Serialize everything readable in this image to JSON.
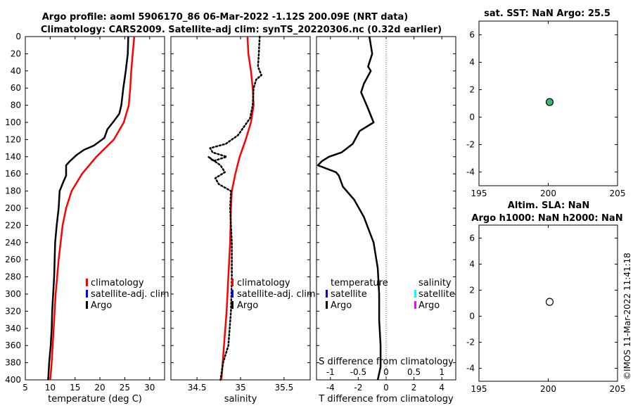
{
  "title": {
    "line1": "Argo profile: aoml 5906170_86 06-Mar-2022 -1.12S 200.09E (NRT data)",
    "line2": "Climatology: CARS2009. Satellite-adj clim: synTS_20220306.nc (0.32d earlier)"
  },
  "colors": {
    "climatology": "#ff0000",
    "satellite": "#0000ff",
    "argo": "#000000",
    "sal_satellite": "#00ffff",
    "sal_argo": "#ff00ff",
    "sst_marker": "#33bb77"
  },
  "legend": {
    "climatology": "climatology",
    "satellite_adj": "satellite-adj. clim",
    "argo": "Argo",
    "temperature": "temperature",
    "salinity": "salinity",
    "satellite": "satellite"
  },
  "stamp": "©IMOS 11-Mar-2022 11:41:18",
  "chart_data": [
    {
      "id": "temperature",
      "type": "line",
      "xlabel": "temperature (deg C)",
      "xlim": [
        5,
        33
      ],
      "xticks": [
        5,
        10,
        15,
        20,
        25,
        30
      ],
      "ylim": [
        0,
        400
      ],
      "yticks": [
        0,
        20,
        40,
        60,
        80,
        100,
        120,
        140,
        160,
        180,
        200,
        220,
        240,
        260,
        280,
        300,
        320,
        340,
        360,
        380,
        400
      ],
      "series": [
        {
          "name": "climatology",
          "style": "solid",
          "points": [
            [
              26.9,
              0
            ],
            [
              26.6,
              20
            ],
            [
              26.3,
              40
            ],
            [
              26.1,
              60
            ],
            [
              25.8,
              80
            ],
            [
              24.8,
              100
            ],
            [
              22.8,
              120
            ],
            [
              19.3,
              140
            ],
            [
              16.4,
              160
            ],
            [
              14.3,
              180
            ],
            [
              13.2,
              200
            ],
            [
              12.5,
              220
            ],
            [
              12.1,
              240
            ],
            [
              11.7,
              260
            ],
            [
              11.4,
              280
            ],
            [
              11.1,
              300
            ],
            [
              10.9,
              320
            ],
            [
              10.7,
              340
            ],
            [
              10.5,
              360
            ],
            [
              10.3,
              380
            ],
            [
              10.0,
              400
            ]
          ]
        },
        {
          "name": "Argo",
          "style": "solid",
          "points": [
            [
              25.7,
              0
            ],
            [
              25.6,
              20
            ],
            [
              25.2,
              40
            ],
            [
              24.7,
              60
            ],
            [
              24.3,
              80
            ],
            [
              23.9,
              90
            ],
            [
              22.6,
              100
            ],
            [
              21.5,
              108
            ],
            [
              20.9,
              118
            ],
            [
              18.8,
              127
            ],
            [
              16.8,
              132
            ],
            [
              15.3,
              138
            ],
            [
              14.0,
              145
            ],
            [
              13.2,
              150
            ],
            [
              13.2,
              162
            ],
            [
              12.6,
              170
            ],
            [
              11.9,
              180
            ],
            [
              11.7,
              200
            ],
            [
              11.3,
              220
            ],
            [
              11.0,
              240
            ],
            [
              10.9,
              260
            ],
            [
              10.8,
              280
            ],
            [
              10.6,
              300
            ],
            [
              10.4,
              320
            ],
            [
              10.3,
              340
            ],
            [
              10.1,
              360
            ],
            [
              9.8,
              380
            ],
            [
              9.6,
              400
            ]
          ]
        }
      ]
    },
    {
      "id": "salinity",
      "type": "line",
      "xlabel": "salinity",
      "xlim": [
        34.2,
        35.8
      ],
      "xticks": [
        34.5,
        35,
        35.5
      ],
      "ylim": [
        0,
        400
      ],
      "series": [
        {
          "name": "climatology",
          "style": "solid",
          "points": [
            [
              35.08,
              0
            ],
            [
              35.09,
              20
            ],
            [
              35.12,
              40
            ],
            [
              35.14,
              60
            ],
            [
              35.15,
              80
            ],
            [
              35.12,
              100
            ],
            [
              35.06,
              120
            ],
            [
              34.99,
              140
            ],
            [
              34.94,
              160
            ],
            [
              34.9,
              180
            ],
            [
              34.89,
              200
            ],
            [
              34.88,
              240
            ],
            [
              34.86,
              280
            ],
            [
              34.84,
              320
            ],
            [
              34.81,
              360
            ],
            [
              34.78,
              400
            ]
          ]
        },
        {
          "name": "Argo",
          "style": "dotted",
          "points": [
            [
              35.22,
              0
            ],
            [
              35.21,
              20
            ],
            [
              35.2,
              35
            ],
            [
              35.24,
              45
            ],
            [
              35.18,
              50
            ],
            [
              35.15,
              60
            ],
            [
              35.14,
              80
            ],
            [
              35.11,
              95
            ],
            [
              34.97,
              115
            ],
            [
              34.83,
              125
            ],
            [
              34.65,
              130
            ],
            [
              34.68,
              135
            ],
            [
              34.84,
              140
            ],
            [
              34.69,
              145
            ],
            [
              34.63,
              140
            ],
            [
              34.77,
              150
            ],
            [
              34.82,
              158
            ],
            [
              34.71,
              165
            ],
            [
              34.75,
              172
            ],
            [
              34.89,
              180
            ],
            [
              34.88,
              200
            ],
            [
              34.9,
              240
            ],
            [
              34.9,
              280
            ],
            [
              34.89,
              320
            ],
            [
              34.86,
              360
            ],
            [
              34.8,
              380
            ],
            [
              34.77,
              400
            ]
          ]
        }
      ]
    },
    {
      "id": "difference",
      "type": "line",
      "xlabel": "T difference from climatology",
      "top_label": "S difference from climatology",
      "xlim": [
        -5,
        5
      ],
      "xticks": [
        -4,
        -2,
        0,
        2,
        4
      ],
      "top_xticks": [
        "-1",
        "-0.5",
        "0",
        "0.5",
        "1"
      ],
      "ylim": [
        0,
        400
      ],
      "zero_line": 0,
      "series": [
        {
          "name": "Argo",
          "style": "solid",
          "points": [
            [
              -1.2,
              0
            ],
            [
              -1.0,
              20
            ],
            [
              -1.3,
              35
            ],
            [
              -1.1,
              40
            ],
            [
              -1.6,
              55
            ],
            [
              -1.8,
              65
            ],
            [
              -1.4,
              80
            ],
            [
              -0.9,
              100
            ],
            [
              -1.9,
              110
            ],
            [
              -2.4,
              125
            ],
            [
              -3.2,
              135
            ],
            [
              -4.1,
              140
            ],
            [
              -4.6,
              145
            ],
            [
              -4.9,
              150
            ],
            [
              -3.6,
              158
            ],
            [
              -3.4,
              162
            ],
            [
              -3.1,
              175
            ],
            [
              -2.3,
              190
            ],
            [
              -1.6,
              210
            ],
            [
              -0.9,
              240
            ],
            [
              -0.6,
              270
            ],
            [
              -0.5,
              300
            ],
            [
              -0.5,
              330
            ],
            [
              -0.4,
              360
            ],
            [
              -0.4,
              385
            ],
            [
              -0.6,
              400
            ]
          ]
        }
      ]
    },
    {
      "id": "sst",
      "type": "scatter",
      "title": "sat. SST: NaN Argo: 25.5",
      "xlim": [
        195,
        205
      ],
      "xticks": [
        195,
        200,
        205
      ],
      "ylim": [
        -5,
        7
      ],
      "yticks": [
        6,
        4,
        2,
        0,
        -2,
        -4
      ],
      "points": [
        {
          "x": 200.1,
          "y": 1.1,
          "filled": true
        }
      ]
    },
    {
      "id": "sla",
      "type": "scatter",
      "title_line1": "Altim. SLA: NaN",
      "title_line2": "Argo h1000: NaN h2000: NaN",
      "xlim": [
        195,
        205
      ],
      "xticks": [
        195,
        200,
        205
      ],
      "ylim": [
        -5,
        7
      ],
      "yticks": [
        6,
        4,
        2,
        0,
        -2,
        -4
      ],
      "points": [
        {
          "x": 200.1,
          "y": 1.1,
          "filled": false
        }
      ]
    }
  ]
}
